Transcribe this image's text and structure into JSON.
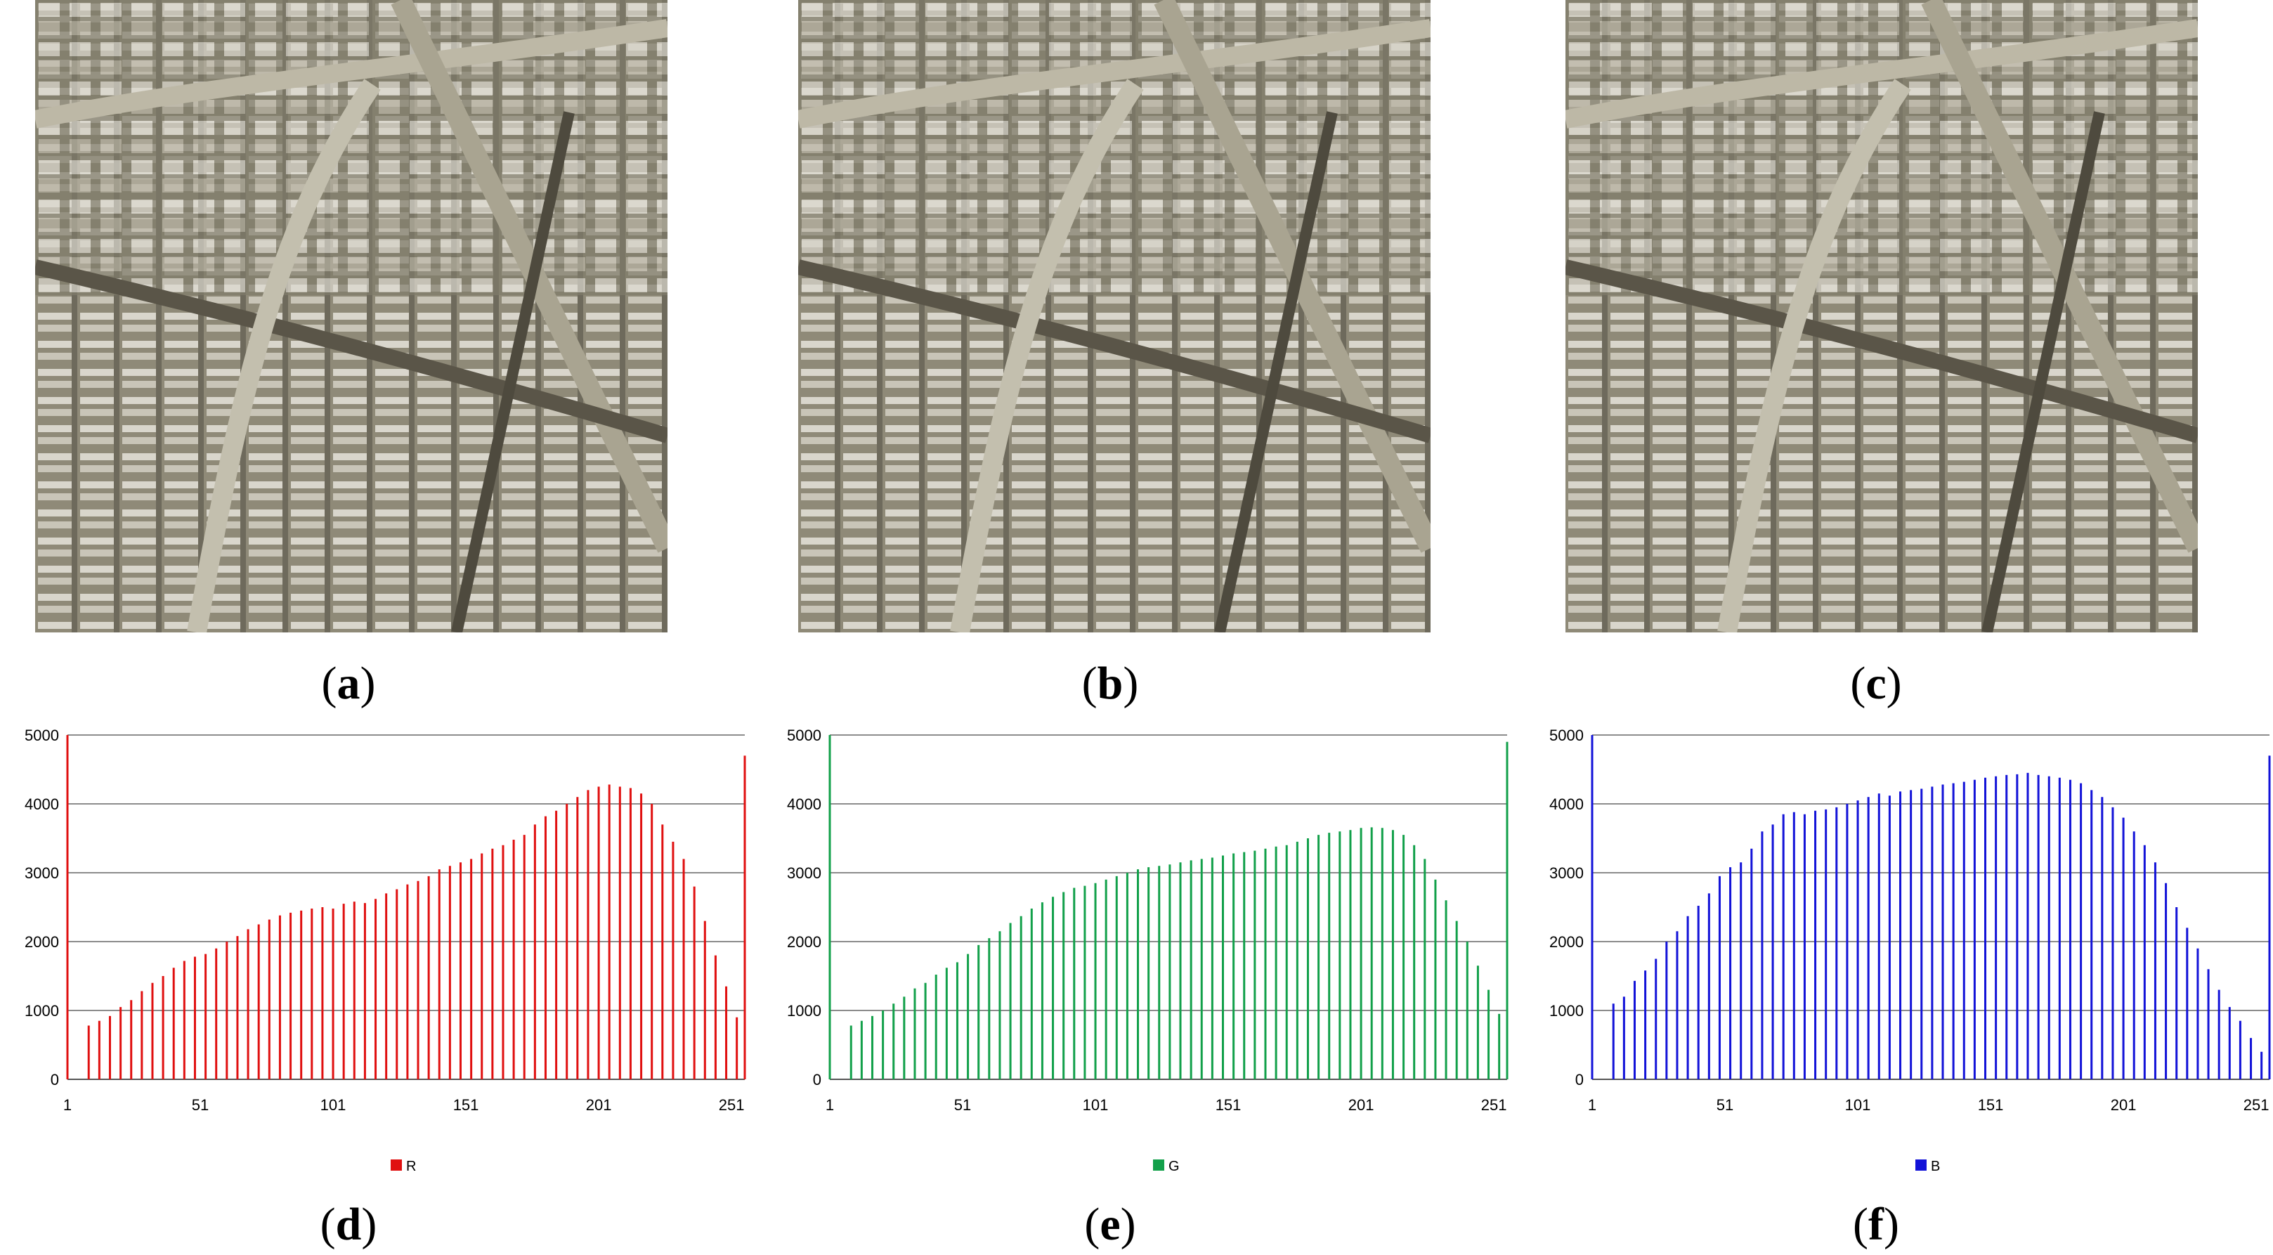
{
  "captions": [
    "a",
    "b",
    "c",
    "d",
    "e",
    "f"
  ],
  "chart_data": [
    {
      "type": "bar",
      "series": [
        {
          "name": "R",
          "color": "#e01010",
          "x": [
            1,
            9,
            13,
            17,
            21,
            25,
            29,
            33,
            37,
            41,
            45,
            49,
            53,
            57,
            61,
            65,
            69,
            73,
            77,
            81,
            85,
            89,
            93,
            97,
            101,
            105,
            109,
            113,
            117,
            121,
            125,
            129,
            133,
            137,
            141,
            145,
            149,
            153,
            157,
            161,
            165,
            169,
            173,
            177,
            181,
            185,
            189,
            193,
            197,
            201,
            205,
            209,
            213,
            217,
            221,
            225,
            229,
            233,
            237,
            241,
            245,
            249,
            253,
            256
          ],
          "values": [
            5000,
            780,
            850,
            920,
            1050,
            1150,
            1280,
            1400,
            1500,
            1620,
            1720,
            1780,
            1820,
            1900,
            2000,
            2080,
            2180,
            2250,
            2320,
            2380,
            2420,
            2450,
            2480,
            2500,
            2480,
            2550,
            2580,
            2560,
            2620,
            2700,
            2760,
            2830,
            2880,
            2950,
            3050,
            3100,
            3150,
            3200,
            3280,
            3350,
            3400,
            3480,
            3550,
            3700,
            3820,
            3900,
            4000,
            4100,
            4200,
            4250,
            4280,
            4250,
            4230,
            4150,
            4000,
            3700,
            3450,
            3200,
            2800,
            2300,
            1800,
            1350,
            900,
            4700
          ]
        }
      ],
      "xticks": [
        1,
        51,
        101,
        151,
        201,
        251
      ],
      "yticks": [
        0,
        1000,
        2000,
        3000,
        4000,
        5000
      ],
      "xlim": [
        1,
        256
      ],
      "ylim": [
        0,
        5000
      ],
      "grid": true,
      "legend": "bottom-center"
    },
    {
      "type": "bar",
      "series": [
        {
          "name": "G",
          "color": "#12a04a",
          "x": [
            1,
            9,
            13,
            17,
            21,
            25,
            29,
            33,
            37,
            41,
            45,
            49,
            53,
            57,
            61,
            65,
            69,
            73,
            77,
            81,
            85,
            89,
            93,
            97,
            101,
            105,
            109,
            113,
            117,
            121,
            125,
            129,
            133,
            137,
            141,
            145,
            149,
            153,
            157,
            161,
            165,
            169,
            173,
            177,
            181,
            185,
            189,
            193,
            197,
            201,
            205,
            209,
            213,
            217,
            221,
            225,
            229,
            233,
            237,
            241,
            245,
            249,
            253,
            256
          ],
          "values": [
            5000,
            780,
            850,
            920,
            1000,
            1100,
            1200,
            1320,
            1400,
            1520,
            1620,
            1700,
            1820,
            1950,
            2050,
            2150,
            2270,
            2370,
            2480,
            2570,
            2650,
            2720,
            2780,
            2810,
            2850,
            2900,
            2950,
            3000,
            3050,
            3080,
            3100,
            3120,
            3150,
            3180,
            3200,
            3220,
            3250,
            3280,
            3300,
            3320,
            3350,
            3380,
            3400,
            3450,
            3500,
            3550,
            3580,
            3600,
            3620,
            3650,
            3660,
            3650,
            3620,
            3550,
            3400,
            3200,
            2900,
            2600,
            2300,
            2000,
            1650,
            1300,
            950,
            4900
          ]
        }
      ],
      "xticks": [
        1,
        51,
        101,
        151,
        201,
        251
      ],
      "yticks": [
        0,
        1000,
        2000,
        3000,
        4000,
        5000
      ],
      "xlim": [
        1,
        256
      ],
      "ylim": [
        0,
        5000
      ],
      "grid": true,
      "legend": "bottom-center"
    },
    {
      "type": "bar",
      "series": [
        {
          "name": "B",
          "color": "#1212d8",
          "x": [
            1,
            9,
            13,
            17,
            21,
            25,
            29,
            33,
            37,
            41,
            45,
            49,
            53,
            57,
            61,
            65,
            69,
            73,
            77,
            81,
            85,
            89,
            93,
            97,
            101,
            105,
            109,
            113,
            117,
            121,
            125,
            129,
            133,
            137,
            141,
            145,
            149,
            153,
            157,
            161,
            165,
            169,
            173,
            177,
            181,
            185,
            189,
            193,
            197,
            201,
            205,
            209,
            213,
            217,
            221,
            225,
            229,
            233,
            237,
            241,
            245,
            249,
            253,
            256
          ],
          "values": [
            5000,
            1100,
            1200,
            1430,
            1580,
            1750,
            2000,
            2150,
            2370,
            2520,
            2700,
            2950,
            3080,
            3150,
            3350,
            3600,
            3700,
            3850,
            3880,
            3850,
            3900,
            3920,
            3950,
            4000,
            4050,
            4100,
            4150,
            4120,
            4180,
            4200,
            4220,
            4250,
            4280,
            4300,
            4320,
            4350,
            4380,
            4400,
            4420,
            4430,
            4450,
            4420,
            4400,
            4380,
            4350,
            4300,
            4200,
            4100,
            3950,
            3800,
            3600,
            3400,
            3150,
            2850,
            2500,
            2200,
            1900,
            1600,
            1300,
            1050,
            850,
            600,
            400,
            4700
          ]
        }
      ],
      "xticks": [
        1,
        51,
        101,
        151,
        201,
        251
      ],
      "yticks": [
        0,
        1000,
        2000,
        3000,
        4000,
        5000
      ],
      "xlim": [
        1,
        256
      ],
      "ylim": [
        0,
        5000
      ],
      "grid": true,
      "legend": "bottom-center"
    }
  ]
}
